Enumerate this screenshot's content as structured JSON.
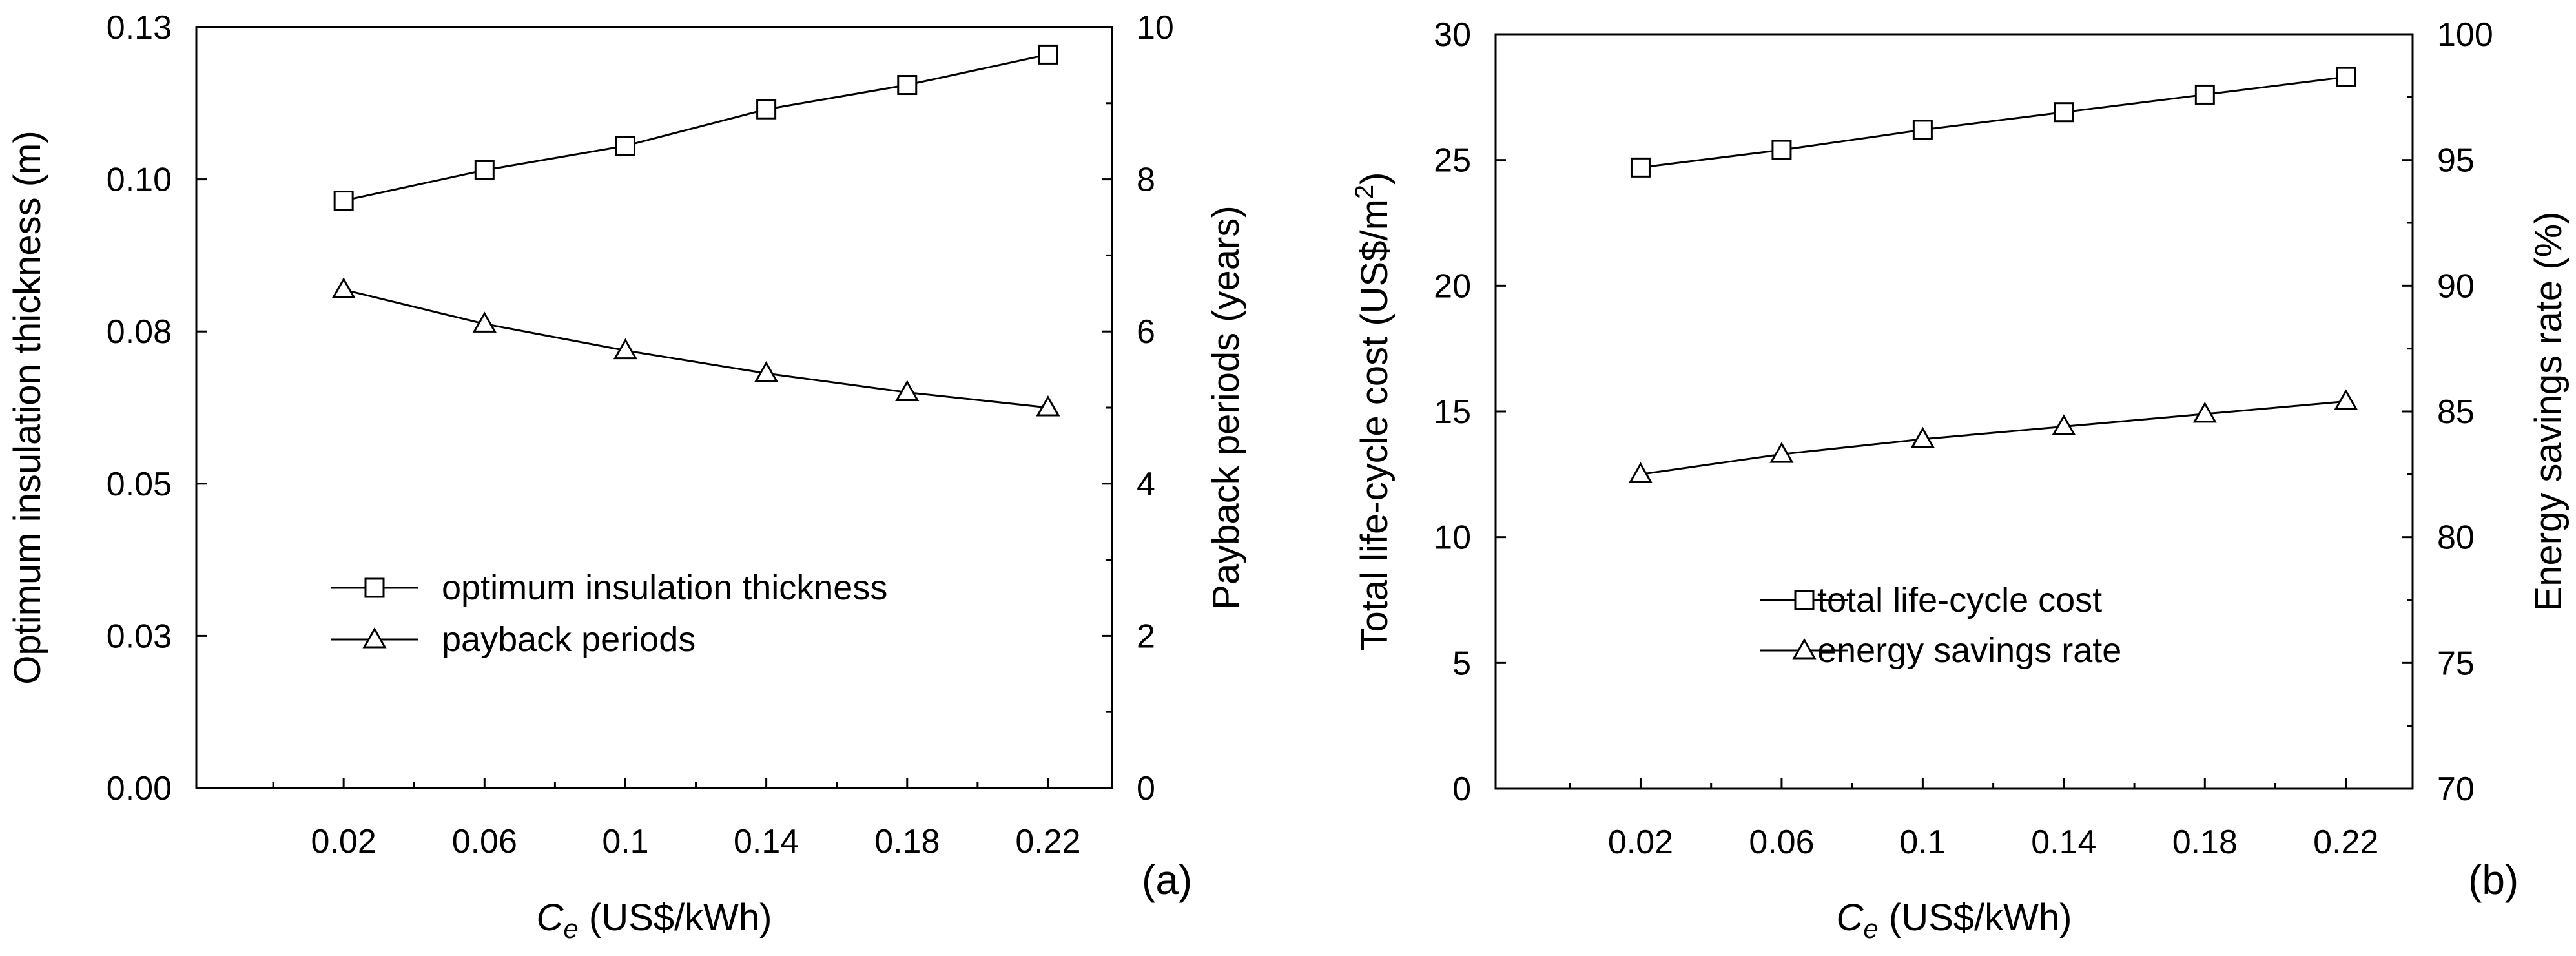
{
  "chart_data": [
    {
      "panel_label": "(a)",
      "type": "line",
      "xlabel_symbol": "C",
      "xlabel_sub": "e",
      "xlabel_unit": " (US$/kWh)",
      "x": [
        0.02,
        0.06,
        0.1,
        0.14,
        0.18,
        0.22
      ],
      "x_tick_labels": [
        "0.02",
        "0.06",
        "0.1",
        "0.14",
        "0.18",
        "0.22"
      ],
      "xlim": [
        -0.02,
        0.24
      ],
      "ylabel_left": "Optimum insulation thickness (m)",
      "ylim_left": [
        0,
        0.125
      ],
      "y_ticks_left": [
        0,
        0.025,
        0.05,
        0.075,
        0.1,
        0.125
      ],
      "y_tick_labels_left": [
        "0.00",
        "0.03",
        "0.05",
        "0.08",
        "0.10",
        "0.13"
      ],
      "ylabel_right": "Payback periods (years)",
      "ylim_right": [
        0,
        10
      ],
      "y_ticks_right": [
        0,
        2,
        4,
        6,
        8,
        10
      ],
      "y_tick_labels_right": [
        "0",
        "2",
        "4",
        "6",
        "8",
        "10"
      ],
      "series": [
        {
          "name": "optimum insulation thickness",
          "axis": "left",
          "marker": "square",
          "values": [
            0.0965,
            0.1015,
            0.1055,
            0.1115,
            0.1155,
            0.1205
          ]
        },
        {
          "name": "payback periods",
          "axis": "right",
          "marker": "triangle",
          "values": [
            6.55,
            6.1,
            5.75,
            5.45,
            5.2,
            5.0
          ]
        }
      ],
      "legend_position": "lower-center"
    },
    {
      "panel_label": "(b)",
      "type": "line",
      "xlabel_symbol": "C",
      "xlabel_sub": "e",
      "xlabel_unit": " (US$/kWh)",
      "x": [
        0.02,
        0.06,
        0.1,
        0.14,
        0.18,
        0.22
      ],
      "x_tick_labels": [
        "0.02",
        "0.06",
        "0.1",
        "0.14",
        "0.18",
        "0.22"
      ],
      "xlim": [
        -0.02,
        0.24
      ],
      "ylabel_left": "Total life-cycle cost (US$/m",
      "ylabel_left_sup": "2",
      "ylabel_left_close": ")",
      "ylim_left": [
        0,
        30
      ],
      "y_ticks_left": [
        0,
        5,
        10,
        15,
        20,
        25,
        30
      ],
      "y_tick_labels_left": [
        "0",
        "5",
        "10",
        "15",
        "20",
        "25",
        "30"
      ],
      "ylabel_right": "Energy savings rate (%)",
      "ylim_right": [
        70,
        100
      ],
      "y_ticks_right": [
        70,
        75,
        80,
        85,
        90,
        95,
        100
      ],
      "y_tick_labels_right": [
        "70",
        "75",
        "80",
        "85",
        "90",
        "95",
        "100"
      ],
      "series": [
        {
          "name": "total life-cycle cost",
          "axis": "left",
          "marker": "square",
          "values": [
            24.7,
            25.4,
            26.2,
            26.9,
            27.6,
            28.3
          ]
        },
        {
          "name": "energy savings rate",
          "axis": "right",
          "marker": "triangle",
          "values": [
            82.5,
            83.3,
            83.9,
            84.4,
            84.9,
            85.4
          ]
        }
      ],
      "legend_position": "lower-center"
    }
  ]
}
